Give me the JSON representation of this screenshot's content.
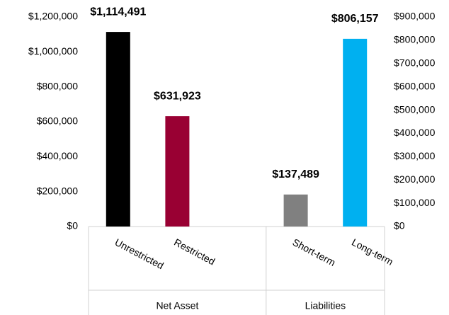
{
  "chart_data": {
    "type": "bar",
    "groups": [
      {
        "label": "Net Asset",
        "categories": [
          "Unrestricted",
          "Restricted",
          null
        ]
      },
      {
        "label": "Liabilities",
        "categories": [
          "Short-term",
          "Long-term"
        ]
      }
    ],
    "series": [
      {
        "axis": "y",
        "colors": [
          "#000000",
          "#990033",
          null,
          null,
          null
        ],
        "values": [
          1114491,
          631923,
          null,
          null,
          null
        ],
        "value_labels": [
          "$1,114,491",
          "$631,923",
          null,
          null,
          null
        ]
      },
      {
        "axis": "y2",
        "colors": [
          null,
          null,
          null,
          "#808080",
          "#00b0f0"
        ],
        "values": [
          null,
          null,
          null,
          137489,
          806157
        ],
        "value_labels": [
          null,
          null,
          null,
          "$137,489",
          "$806,157"
        ]
      }
    ],
    "ylim": [
      0,
      1200000
    ],
    "yticks": [
      {
        "value": 0,
        "label": "$0"
      },
      {
        "value": 200000,
        "label": "$200,000"
      },
      {
        "value": 400000,
        "label": "$400,000"
      },
      {
        "value": 600000,
        "label": "$600,000"
      },
      {
        "value": 800000,
        "label": "$800,000"
      },
      {
        "value": 1000000,
        "label": "$1,000,000"
      },
      {
        "value": 1200000,
        "label": "$1,200,000"
      }
    ],
    "y2lim": [
      0,
      900000
    ],
    "y2ticks": [
      {
        "value": 0,
        "label": "$0"
      },
      {
        "value": 100000,
        "label": "$100,000"
      },
      {
        "value": 200000,
        "label": "$200,000"
      },
      {
        "value": 300000,
        "label": "$300,000"
      },
      {
        "value": 400000,
        "label": "$400,000"
      },
      {
        "value": 500000,
        "label": "$500,000"
      },
      {
        "value": 600000,
        "label": "$600,000"
      },
      {
        "value": 700000,
        "label": "$700,000"
      },
      {
        "value": 800000,
        "label": "$800,000"
      },
      {
        "value": 900000,
        "label": "$900,000"
      }
    ]
  }
}
